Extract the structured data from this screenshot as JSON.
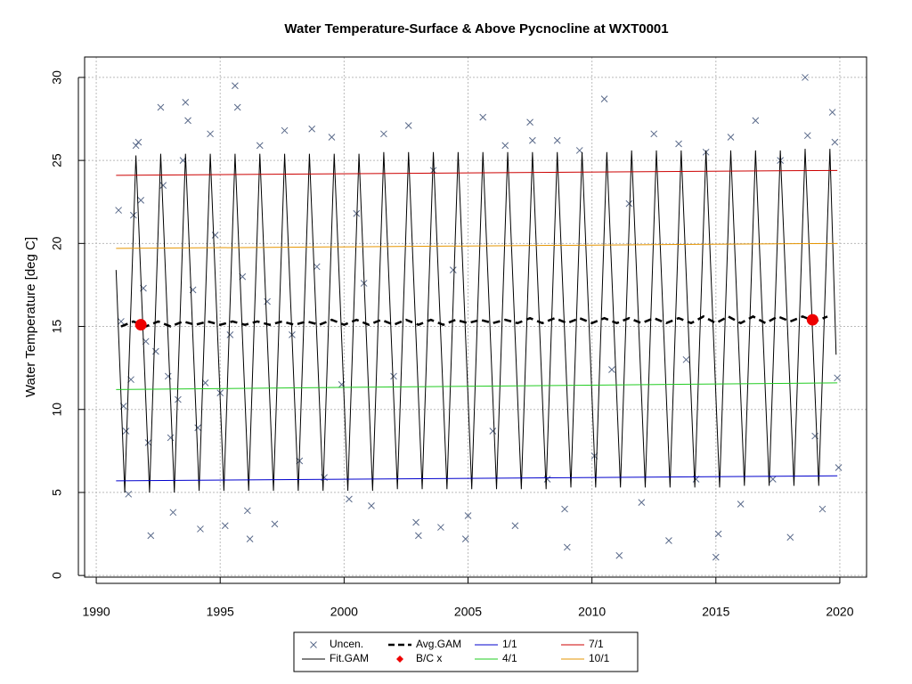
{
  "chart_data": {
    "type": "line",
    "title": "Water Temperature-Surface & Above Pycnocline at WXT0001",
    "ylabel": "Water Temperature [deg C]",
    "xlim": [
      1989.53,
      2021.08
    ],
    "ylim": [
      -0.1,
      31.23
    ],
    "xticks": [
      1990,
      1995,
      2000,
      2005,
      2010,
      2015,
      2020
    ],
    "yticks": [
      0,
      5,
      10,
      15,
      20,
      25,
      30
    ],
    "grid": true,
    "legend": "bottom",
    "series": [
      {
        "name": "Uncen.",
        "type": "scatter",
        "marker": "x",
        "color": "#5a6a8a",
        "x": [
          1990.9,
          1991.0,
          1991.1,
          1991.2,
          1991.3,
          1991.4,
          1991.5,
          1991.6,
          1991.7,
          1991.8,
          1991.9,
          1992.0,
          1992.1,
          1992.2,
          1992.4,
          1992.6,
          1992.7,
          1992.9,
          1993.0,
          1993.1,
          1993.3,
          1993.5,
          1993.6,
          1993.7,
          1993.9,
          1994.1,
          1994.2,
          1994.4,
          1994.6,
          1994.8,
          1995.0,
          1995.2,
          1995.4,
          1995.6,
          1995.7,
          1995.9,
          1996.1,
          1996.2,
          1996.6,
          1996.9,
          1997.2,
          1997.6,
          1997.9,
          1998.2,
          1998.7,
          1998.9,
          1999.2,
          1999.5,
          1999.9,
          2000.2,
          2000.5,
          2000.8,
          2001.1,
          2001.6,
          2002.0,
          2002.6,
          2002.9,
          2003.0,
          2003.6,
          2003.9,
          2004.4,
          2004.9,
          2005.0,
          2005.6,
          2006.0,
          2006.5,
          2006.9,
          2007.5,
          2007.6,
          2008.2,
          2008.6,
          2008.9,
          2009.0,
          2009.5,
          2010.1,
          2010.5,
          2010.8,
          2011.1,
          2011.5,
          2012.0,
          2012.5,
          2013.1,
          2013.5,
          2013.8,
          2014.2,
          2014.6,
          2015.0,
          2015.1,
          2015.6,
          2016.0,
          2016.6,
          2017.3,
          2017.6,
          2018.0,
          2018.6,
          2018.7,
          2019.0,
          2019.3,
          2019.7,
          2019.8,
          2019.9,
          2019.95
        ],
        "values": [
          22.0,
          15.3,
          10.2,
          8.7,
          4.9,
          11.8,
          21.7,
          25.9,
          26.1,
          22.6,
          17.3,
          14.1,
          8.0,
          2.4,
          13.5,
          28.2,
          23.5,
          12.0,
          8.3,
          3.8,
          10.6,
          25.0,
          28.5,
          27.4,
          17.2,
          8.9,
          2.8,
          11.6,
          26.6,
          20.5,
          11.0,
          3.0,
          14.5,
          29.5,
          28.2,
          18.0,
          3.9,
          2.2,
          25.9,
          16.5,
          3.1,
          26.8,
          14.5,
          6.9,
          26.9,
          18.6,
          5.9,
          26.4,
          11.5,
          4.6,
          21.8,
          17.6,
          4.2,
          26.6,
          12.0,
          27.1,
          3.2,
          2.4,
          24.4,
          2.9,
          18.4,
          2.2,
          3.6,
          27.6,
          8.7,
          25.9,
          3.0,
          27.3,
          26.2,
          5.8,
          26.2,
          4.0,
          1.7,
          25.6,
          7.2,
          28.7,
          12.4,
          1.2,
          22.4,
          4.4,
          26.6,
          2.1,
          26.0,
          13.0,
          5.8,
          25.5,
          1.1,
          2.5,
          26.4,
          4.3,
          27.4,
          5.8,
          25.0,
          2.3,
          30.0,
          26.5,
          8.4,
          4.0,
          27.9,
          26.1,
          11.9,
          6.5
        ]
      },
      {
        "name": "Fit.GAM",
        "type": "line",
        "color": "#000000",
        "x": [
          1990.8,
          1991.15,
          1991.6,
          1992.15,
          1992.6,
          1993.15,
          1993.6,
          1994.15,
          1994.6,
          1995.15,
          1995.6,
          1996.15,
          1996.6,
          1997.15,
          1997.6,
          1998.15,
          1998.6,
          1999.15,
          1999.6,
          2000.15,
          2000.6,
          2001.15,
          2001.6,
          2002.15,
          2002.6,
          2003.15,
          2003.6,
          2004.15,
          2004.6,
          2005.15,
          2005.6,
          2006.15,
          2006.6,
          2007.15,
          2007.6,
          2008.15,
          2008.6,
          2009.15,
          2009.6,
          2010.15,
          2010.6,
          2011.15,
          2011.6,
          2012.15,
          2012.6,
          2013.15,
          2013.6,
          2014.15,
          2014.6,
          2015.15,
          2015.6,
          2016.15,
          2016.6,
          2017.15,
          2017.6,
          2018.15,
          2018.6,
          2019.15,
          2019.6,
          2019.85
        ],
        "values": [
          18.4,
          5.0,
          25.3,
          5.0,
          25.4,
          5.0,
          25.4,
          5.1,
          25.4,
          5.1,
          25.4,
          5.1,
          25.4,
          5.1,
          25.4,
          5.1,
          25.4,
          5.1,
          25.4,
          5.1,
          25.4,
          5.1,
          25.5,
          5.2,
          25.5,
          5.2,
          25.5,
          5.2,
          25.5,
          5.2,
          25.5,
          5.2,
          25.5,
          5.2,
          25.5,
          5.2,
          25.5,
          5.3,
          25.5,
          5.3,
          25.5,
          5.3,
          25.6,
          5.3,
          25.6,
          5.3,
          25.6,
          5.3,
          25.6,
          5.3,
          25.6,
          5.4,
          25.6,
          5.4,
          25.6,
          5.4,
          25.7,
          5.4,
          25.7,
          13.3
        ]
      },
      {
        "name": "Avg.GAM",
        "type": "line",
        "dash": true,
        "color": "#000000",
        "x": [
          1991.0,
          1991.5,
          1992.0,
          1992.5,
          1993.0,
          1993.5,
          1994.0,
          1994.5,
          1995.0,
          1995.5,
          1996.0,
          1996.5,
          1997.0,
          1997.5,
          1998.0,
          1998.5,
          1999.0,
          1999.5,
          2000.0,
          2000.5,
          2001.0,
          2001.5,
          2002.0,
          2002.5,
          2003.0,
          2003.5,
          2004.0,
          2004.5,
          2005.0,
          2005.5,
          2006.0,
          2006.5,
          2007.0,
          2007.5,
          2008.0,
          2008.5,
          2009.0,
          2009.5,
          2010.0,
          2010.5,
          2011.0,
          2011.5,
          2012.0,
          2012.5,
          2013.0,
          2013.5,
          2014.0,
          2014.5,
          2015.0,
          2015.5,
          2016.0,
          2016.5,
          2017.0,
          2017.5,
          2018.0,
          2018.5,
          2019.0,
          2019.5
        ],
        "values": [
          15.0,
          15.3,
          15.0,
          15.3,
          15.0,
          15.3,
          15.1,
          15.3,
          15.1,
          15.3,
          15.1,
          15.3,
          15.1,
          15.3,
          15.1,
          15.3,
          15.1,
          15.4,
          15.1,
          15.4,
          15.1,
          15.4,
          15.1,
          15.4,
          15.1,
          15.4,
          15.1,
          15.4,
          15.2,
          15.4,
          15.2,
          15.4,
          15.2,
          15.5,
          15.2,
          15.5,
          15.2,
          15.5,
          15.2,
          15.5,
          15.2,
          15.5,
          15.2,
          15.5,
          15.2,
          15.5,
          15.2,
          15.6,
          15.2,
          15.6,
          15.2,
          15.6,
          15.2,
          15.6,
          15.3,
          15.6,
          15.3,
          15.6
        ]
      },
      {
        "name": "B/C x",
        "type": "scatter",
        "marker": "circle",
        "color": "#ee0000",
        "x": [
          1991.8,
          2018.9
        ],
        "values": [
          15.1,
          15.4
        ]
      },
      {
        "name": "1/1",
        "type": "line",
        "color": "#0000cc",
        "x": [
          1990.8,
          2019.9
        ],
        "values": [
          5.7,
          6.0
        ]
      },
      {
        "name": "4/1",
        "type": "line",
        "color": "#22cc22",
        "x": [
          1990.8,
          2019.9
        ],
        "values": [
          11.2,
          11.6
        ]
      },
      {
        "name": "7/1",
        "type": "line",
        "color": "#cc0000",
        "x": [
          1990.8,
          2019.9
        ],
        "values": [
          24.1,
          24.4
        ]
      },
      {
        "name": "10/1",
        "type": "line",
        "color": "#e69500",
        "x": [
          1990.8,
          2019.9
        ],
        "values": [
          19.7,
          20.0
        ]
      }
    ]
  }
}
